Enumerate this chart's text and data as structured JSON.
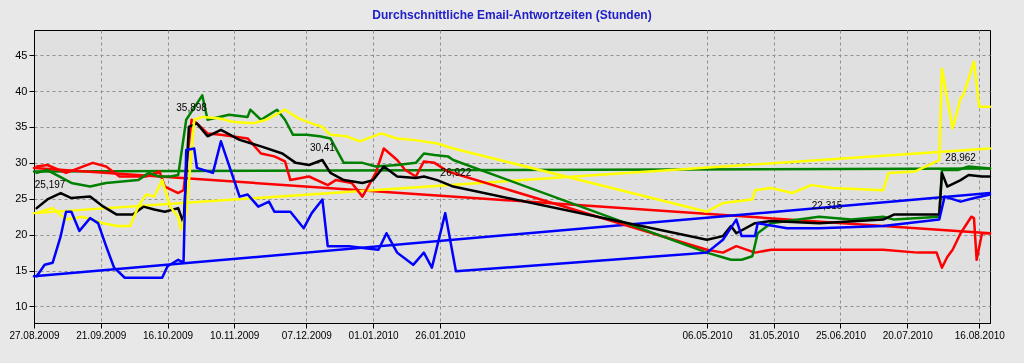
{
  "chart_data": {
    "type": "line",
    "title": "Durchschnittliche Email-Antwortzeiten (Stunden)",
    "xlim": [
      "2009-08-27",
      "2010-08-20"
    ],
    "xticks": [
      {
        "value": "2009-08-27",
        "label": "27.08.2009"
      },
      {
        "value": "2009-09-21",
        "label": "21.09.2009"
      },
      {
        "value": "2009-10-16",
        "label": "16.10.2009"
      },
      {
        "value": "2009-11-10",
        "label": "10.11.2009"
      },
      {
        "value": "2009-12-07",
        "label": "07.12.2009"
      },
      {
        "value": "2010-01-01",
        "label": "01.01.2010"
      },
      {
        "value": "2010-01-26",
        "label": "26.01.2010"
      },
      {
        "value": "2010-05-06",
        "label": "06.05.2010"
      },
      {
        "value": "2010-05-31",
        "label": "31.05.2010"
      },
      {
        "value": "2010-06-25",
        "label": "25.06.2010"
      },
      {
        "value": "2010-07-20",
        "label": "20.07.2010"
      },
      {
        "value": "2010-08-16",
        "label": "16.08.2010"
      }
    ],
    "ylim": [
      7.7,
      48.5
    ],
    "yticks": [
      10,
      15,
      20,
      25,
      30,
      35,
      40,
      45
    ],
    "grid": true,
    "line_style": "solid",
    "series": [
      {
        "color": "#008000",
        "x": [
          "2009-08-27",
          "2010-08-20"
        ],
        "values": [
          28.8,
          29.2
        ]
      },
      {
        "color": "#ff0000",
        "x": [
          "2009-08-27",
          "2010-08-20"
        ],
        "values": [
          29.3,
          20.2
        ]
      },
      {
        "color": "#ffff00",
        "x": [
          "2009-08-27",
          "2010-08-20"
        ],
        "values": [
          23.0,
          32.0
        ]
      },
      {
        "color": "#0000ff",
        "x": [
          "2009-08-27",
          "2010-08-20"
        ],
        "values": [
          14.2,
          25.8
        ]
      },
      {
        "color": "#ff0000",
        "x": [
          "2009-08-28",
          "2009-09-01",
          "2009-09-08",
          "2009-09-18",
          "2009-09-23",
          "2009-09-28",
          "2009-10-08",
          "2009-10-13",
          "2009-10-15",
          "2009-10-20",
          "2009-10-22",
          "2009-10-25",
          "2009-10-27",
          "2009-10-31",
          "2009-11-05",
          "2009-11-15",
          "2009-11-20",
          "2009-11-25",
          "2009-11-29",
          "2009-12-01",
          "2009-12-08",
          "2009-12-15",
          "2009-12-18",
          "2009-12-24",
          "2009-12-28",
          "2010-01-02",
          "2010-01-05",
          "2010-01-10",
          "2010-01-13",
          "2010-01-17",
          "2010-01-20",
          "2010-01-24",
          "2010-01-29",
          "2010-05-06",
          "2010-05-12",
          "2010-05-17",
          "2010-05-24",
          "2010-05-30",
          "2010-06-17",
          "2010-06-29",
          "2010-07-11",
          "2010-07-24",
          "2010-07-31",
          "2010-08-02",
          "2010-08-04",
          "2010-08-06",
          "2010-08-09",
          "2010-08-13",
          "2010-08-14",
          "2010-08-15",
          "2010-08-17",
          "2010-08-20"
        ],
        "values": [
          29.5,
          29.7,
          28.6,
          30.0,
          29.5,
          28.1,
          28.1,
          28.8,
          26.7,
          25.8,
          26.2,
          36.0,
          35.5,
          34.1,
          33.9,
          33.4,
          31.3,
          30.9,
          30.2,
          27.6,
          28.1,
          26.9,
          27.6,
          27.2,
          25.3,
          28.6,
          32.0,
          30.4,
          29.0,
          28.1,
          30.2,
          30.0,
          28.8,
          17.9,
          17.5,
          18.4,
          17.5,
          17.9,
          17.9,
          17.9,
          17.9,
          17.5,
          17.5,
          15.4,
          16.9,
          17.9,
          20.2,
          22.5,
          22.3,
          16.5,
          20.2,
          20.2
        ]
      },
      {
        "color": "#008000",
        "x": [
          "2009-08-28",
          "2009-09-01",
          "2009-09-10",
          "2009-09-17",
          "2009-09-23",
          "2009-09-29",
          "2009-10-05",
          "2009-10-09",
          "2009-10-13",
          "2009-10-17",
          "2009-10-20",
          "2009-10-23",
          "2009-10-29",
          "2009-10-31",
          "2009-11-08",
          "2009-11-15",
          "2009-11-16",
          "2009-11-20",
          "2009-11-26",
          "2009-11-29",
          "2009-12-02",
          "2009-12-07",
          "2009-12-12",
          "2009-12-16",
          "2009-12-21",
          "2009-12-28",
          "2010-01-02",
          "2010-01-10",
          "2010-01-17",
          "2010-01-20",
          "2010-01-24",
          "2010-01-29",
          "2010-01-31",
          "2010-05-06",
          "2010-05-15",
          "2010-05-19",
          "2010-05-23",
          "2010-05-25",
          "2010-05-30",
          "2010-06-17",
          "2010-06-29",
          "2010-07-11",
          "2010-07-15",
          "2010-08-01",
          "2010-08-02",
          "2010-08-08",
          "2010-08-12",
          "2010-08-20"
        ],
        "values": [
          28.6,
          29.0,
          27.2,
          26.7,
          27.2,
          27.4,
          27.6,
          28.6,
          28.1,
          28.1,
          28.3,
          36.0,
          39.4,
          36.0,
          36.7,
          36.4,
          37.4,
          36.0,
          37.4,
          36.0,
          33.9,
          33.9,
          33.7,
          33.4,
          30.0,
          30.0,
          29.5,
          29.7,
          30.0,
          31.3,
          31.1,
          30.9,
          30.4,
          17.5,
          16.5,
          16.5,
          17.0,
          20.2,
          21.6,
          22.5,
          22.1,
          22.5,
          22.1,
          22.5,
          29.0,
          29.0,
          29.5,
          29.2
        ]
      },
      {
        "color": "#000000",
        "x": [
          "2009-08-28",
          "2009-09-01",
          "2009-09-06",
          "2009-09-10",
          "2009-09-17",
          "2009-09-22",
          "2009-09-27",
          "2009-10-03",
          "2009-10-07",
          "2009-10-11",
          "2009-10-15",
          "2009-10-20",
          "2009-10-22",
          "2009-10-24",
          "2009-10-27",
          "2009-10-31",
          "2009-11-05",
          "2009-11-12",
          "2009-11-20",
          "2009-11-28",
          "2009-12-03",
          "2009-12-08",
          "2009-12-13",
          "2009-12-16",
          "2009-12-21",
          "2009-12-28",
          "2010-01-01",
          "2010-01-05",
          "2010-01-10",
          "2010-01-17",
          "2010-01-20",
          "2010-01-25",
          "2010-01-31",
          "2010-05-06",
          "2010-05-12",
          "2010-05-15",
          "2010-05-17",
          "2010-05-24",
          "2010-05-30",
          "2010-06-17",
          "2010-07-11",
          "2010-07-15",
          "2010-08-01",
          "2010-08-02",
          "2010-08-04",
          "2010-08-09",
          "2010-08-12",
          "2010-08-17",
          "2010-08-20"
        ],
        "values": [
          23.7,
          24.9,
          25.8,
          25.1,
          25.3,
          23.9,
          22.8,
          22.8,
          23.9,
          23.5,
          23.2,
          23.7,
          21.6,
          35.0,
          35.5,
          33.7,
          34.6,
          33.2,
          32.3,
          31.3,
          30.0,
          29.7,
          30.4,
          28.6,
          27.6,
          27.2,
          27.6,
          29.5,
          28.1,
          27.9,
          28.1,
          27.6,
          26.7,
          19.3,
          19.8,
          21.2,
          20.2,
          21.6,
          21.9,
          21.6,
          22.1,
          22.8,
          22.8,
          28.6,
          26.7,
          27.6,
          28.3,
          28.1,
          28.1
        ]
      },
      {
        "color": "#ffff00",
        "x": [
          "2009-08-28",
          "2009-09-01",
          "2009-09-03",
          "2009-09-08",
          "2009-09-14",
          "2009-09-22",
          "2009-09-27",
          "2009-10-02",
          "2009-10-05",
          "2009-10-08",
          "2009-10-11",
          "2009-10-14",
          "2009-10-17",
          "2009-10-20",
          "2009-10-21",
          "2009-10-23",
          "2009-10-26",
          "2009-10-29",
          "2009-11-04",
          "2009-11-10",
          "2009-11-17",
          "2009-11-22",
          "2009-11-29",
          "2009-12-04",
          "2009-12-09",
          "2009-12-13",
          "2009-12-16",
          "2009-12-22",
          "2009-12-27",
          "2010-01-04",
          "2010-01-10",
          "2010-01-16",
          "2010-01-25",
          "2010-01-31",
          "2010-05-06",
          "2010-05-12",
          "2010-05-23",
          "2010-05-24",
          "2010-05-30",
          "2010-06-07",
          "2010-06-14",
          "2010-06-22",
          "2010-07-11",
          "2010-07-13",
          "2010-07-23",
          "2010-07-31",
          "2010-08-01",
          "2010-08-02",
          "2010-08-06",
          "2010-08-09",
          "2010-08-10",
          "2010-08-14",
          "2010-08-16",
          "2010-08-20"
        ],
        "values": [
          23.0,
          23.5,
          23.7,
          22.1,
          22.5,
          21.6,
          21.2,
          21.2,
          23.9,
          25.6,
          25.3,
          27.6,
          23.9,
          22.5,
          20.7,
          23.0,
          36.0,
          36.4,
          36.2,
          35.7,
          35.5,
          36.0,
          37.4,
          36.2,
          35.5,
          35.0,
          33.9,
          33.7,
          33.0,
          34.1,
          33.4,
          33.2,
          32.7,
          32.0,
          23.2,
          24.4,
          24.9,
          26.2,
          26.5,
          25.8,
          26.9,
          26.5,
          26.2,
          28.6,
          28.8,
          30.2,
          30.4,
          43.1,
          34.8,
          39.0,
          39.4,
          44.1,
          37.8,
          37.8
        ]
      },
      {
        "color": "#0000ff",
        "x": [
          "2009-08-28",
          "2009-08-31",
          "2009-09-03",
          "2009-09-06",
          "2009-09-08",
          "2009-09-10",
          "2009-09-13",
          "2009-09-17",
          "2009-09-20",
          "2009-09-23",
          "2009-09-26",
          "2009-09-30",
          "2009-10-08",
          "2009-10-14",
          "2009-10-16",
          "2009-10-20",
          "2009-10-22",
          "2009-10-23",
          "2009-10-26",
          "2009-10-27",
          "2009-11-02",
          "2009-11-05",
          "2009-11-12",
          "2009-11-15",
          "2009-11-19",
          "2009-11-23",
          "2009-11-25",
          "2009-12-01",
          "2009-12-06",
          "2009-12-09",
          "2009-12-13",
          "2009-12-15",
          "2009-12-23",
          "2009-12-29",
          "2010-01-03",
          "2010-01-06",
          "2010-01-10",
          "2010-01-16",
          "2010-01-20",
          "2010-01-23",
          "2010-01-28",
          "2010-02-01",
          "2010-05-06",
          "2010-05-12",
          "2010-05-17",
          "2010-05-19",
          "2010-05-24",
          "2010-05-25",
          "2010-06-05",
          "2010-06-17",
          "2010-07-11",
          "2010-08-01",
          "2010-08-03",
          "2010-08-09",
          "2010-08-13",
          "2010-08-20"
        ],
        "values": [
          14.2,
          15.8,
          16.1,
          19.8,
          23.2,
          23.2,
          20.5,
          22.3,
          21.6,
          18.4,
          15.4,
          14.0,
          14.0,
          14.0,
          15.6,
          16.5,
          16.1,
          31.8,
          32.0,
          29.3,
          28.6,
          33.0,
          25.3,
          25.6,
          23.9,
          24.6,
          23.2,
          23.2,
          20.9,
          23.0,
          24.9,
          18.4,
          18.4,
          18.1,
          17.9,
          20.2,
          17.5,
          15.8,
          17.5,
          15.4,
          23.0,
          14.9,
          17.5,
          19.3,
          22.1,
          19.8,
          19.8,
          21.6,
          20.9,
          20.9,
          21.2,
          22.1,
          25.3,
          24.6,
          25.0,
          25.6
        ]
      }
    ],
    "annotations": [
      {
        "text": "25,197",
        "x": "2009-09-02",
        "y": 25.197
      },
      {
        "text": "35,898",
        "x": "2009-10-25",
        "y": 35.898
      },
      {
        "text": "30,41",
        "x": "2009-12-13",
        "y": 30.41
      },
      {
        "text": "26,922",
        "x": "2010-02-01",
        "y": 26.922
      },
      {
        "text": "22,315",
        "x": "2010-06-20",
        "y": 22.315
      },
      {
        "text": "28,962",
        "x": "2010-08-09",
        "y": 28.962
      }
    ]
  }
}
